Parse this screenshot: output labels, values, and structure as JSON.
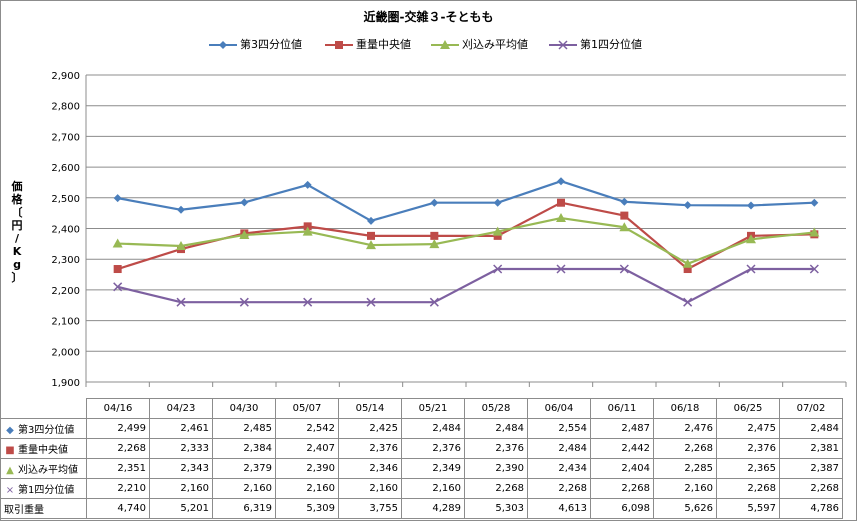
{
  "chart_data": {
    "type": "line",
    "title": "近畿圏-交雑３-そともも",
    "ylabel": "価格〔円/Kg〕",
    "ylim": [
      1900,
      2900
    ],
    "yticks": [
      1900,
      2000,
      2100,
      2200,
      2300,
      2400,
      2500,
      2600,
      2700,
      2800,
      2900
    ],
    "ytick_labels": [
      "1,900",
      "2,000",
      "2,100",
      "2,200",
      "2,300",
      "2,400",
      "2,500",
      "2,600",
      "2,700",
      "2,800",
      "2,900"
    ],
    "grid": true,
    "legend_position": "top",
    "categories": [
      "04/16",
      "04/23",
      "04/30",
      "05/07",
      "05/14",
      "05/21",
      "05/28",
      "06/04",
      "06/11",
      "06/18",
      "06/25",
      "07/02"
    ],
    "series": [
      {
        "name": "第3四分位値",
        "color": "#4a7ebb",
        "marker": "diamond",
        "values": [
          2499,
          2461,
          2485,
          2542,
          2425,
          2484,
          2484,
          2554,
          2487,
          2476,
          2475,
          2484
        ]
      },
      {
        "name": "重量中央値",
        "color": "#be4b48",
        "marker": "square",
        "values": [
          2268,
          2333,
          2384,
          2407,
          2376,
          2376,
          2376,
          2484,
          2442,
          2268,
          2376,
          2381
        ]
      },
      {
        "name": "刈込み平均値",
        "color": "#98b954",
        "marker": "triangle",
        "values": [
          2351,
          2343,
          2379,
          2390,
          2346,
          2349,
          2390,
          2434,
          2404,
          2285,
          2365,
          2387
        ]
      },
      {
        "name": "第1四分位値",
        "color": "#7d60a0",
        "marker": "x",
        "values": [
          2210,
          2160,
          2160,
          2160,
          2160,
          2160,
          2268,
          2268,
          2268,
          2160,
          2268,
          2268
        ]
      }
    ],
    "table": {
      "rows": [
        {
          "label": "第3四分位値",
          "marker": "◆",
          "color": "#4a7ebb",
          "cells": [
            "2,499",
            "2,461",
            "2,485",
            "2,542",
            "2,425",
            "2,484",
            "2,484",
            "2,554",
            "2,487",
            "2,476",
            "2,475",
            "2,484"
          ]
        },
        {
          "label": "重量中央値",
          "marker": "■",
          "color": "#be4b48",
          "cells": [
            "2,268",
            "2,333",
            "2,384",
            "2,407",
            "2,376",
            "2,376",
            "2,376",
            "2,484",
            "2,442",
            "2,268",
            "2,376",
            "2,381"
          ]
        },
        {
          "label": "刈込み平均値",
          "marker": "▲",
          "color": "#98b954",
          "cells": [
            "2,351",
            "2,343",
            "2,379",
            "2,390",
            "2,346",
            "2,349",
            "2,390",
            "2,434",
            "2,404",
            "2,285",
            "2,365",
            "2,387"
          ]
        },
        {
          "label": "第1四分位値",
          "marker": "×",
          "color": "#7d60a0",
          "cells": [
            "2,210",
            "2,160",
            "2,160",
            "2,160",
            "2,160",
            "2,160",
            "2,268",
            "2,268",
            "2,268",
            "2,160",
            "2,268",
            "2,268"
          ]
        },
        {
          "label": "取引重量",
          "marker": "",
          "color": "",
          "cells": [
            "4,740",
            "5,201",
            "6,319",
            "5,309",
            "3,755",
            "4,289",
            "5,303",
            "4,613",
            "6,098",
            "5,626",
            "5,597",
            "4,786"
          ]
        }
      ]
    }
  }
}
